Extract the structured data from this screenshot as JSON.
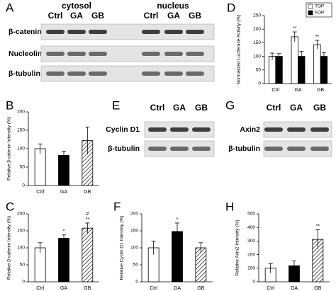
{
  "blots": [
    {
      "label": "A",
      "groups": [
        {
          "name": "cytosol",
          "lanes": [
            "Ctrl",
            "GA",
            "GB"
          ]
        },
        {
          "name": "nucleus",
          "lanes": [
            "Ctrl",
            "GA",
            "GB"
          ]
        }
      ],
      "rows": [
        "β-catenin",
        "Nucleolin",
        "β-tubulin"
      ]
    },
    {
      "label": "E",
      "groups": [
        {
          "lanes": [
            "Ctrl",
            "GA",
            "GB"
          ]
        }
      ],
      "rows": [
        "Cyclin D1",
        "β-tubulin"
      ]
    },
    {
      "label": "G",
      "groups": [
        {
          "lanes": [
            "Ctrl",
            "GA",
            "GB"
          ]
        }
      ],
      "rows": [
        "Axin2",
        "β-tubulin"
      ]
    }
  ],
  "chart_data": [
    {
      "type": "grouped-bar",
      "panel": "D",
      "y_label": "Normalized Luciferase Activity (%)",
      "categories": [
        "Ctrl",
        "GA",
        "GB"
      ],
      "series": [
        {
          "name": "TOP",
          "color": "#ffffff",
          "values": [
            100,
            172,
            143
          ],
          "errors": [
            12,
            18,
            16
          ]
        },
        {
          "name": "FOP",
          "color": "#000000",
          "values": [
            100,
            100,
            100
          ],
          "errors": [
            10,
            18,
            14
          ]
        }
      ],
      "annotations": [
        [],
        [
          "**"
        ],
        [
          "**"
        ]
      ],
      "ylim": [
        0,
        250
      ],
      "yticks": [
        0,
        50,
        100,
        150,
        200,
        250
      ],
      "legend": "upper right"
    },
    {
      "type": "bar",
      "panel": "B",
      "y_label": "Relative β-catenin Intensity (%)",
      "categories": [
        "Ctrl",
        "GA",
        "GB"
      ],
      "values": [
        100,
        82,
        122
      ],
      "errors": [
        13,
        11,
        37
      ],
      "fills": [
        "#ffffff",
        "#000000",
        "hatched"
      ],
      "annotations": [
        [],
        [],
        []
      ],
      "ylim": [
        0,
        200
      ],
      "yticks": [
        0,
        50,
        100,
        150,
        200
      ]
    },
    {
      "type": "bar",
      "panel": "C",
      "y_label": "Relative β-catenin Intensity (%)",
      "categories": [
        "Ctrl",
        "GA",
        "GB"
      ],
      "values": [
        100,
        128,
        158
      ],
      "errors": [
        15,
        10,
        15
      ],
      "fills": [
        "#ffffff",
        "#000000",
        "hatched"
      ],
      "annotations": [
        [],
        [
          "*"
        ],
        [
          "#",
          "**"
        ]
      ],
      "ylim": [
        0,
        200
      ],
      "yticks": [
        0,
        50,
        100,
        150,
        200
      ]
    },
    {
      "type": "bar",
      "panel": "F",
      "y_label": "Relative Cyclin D1 Intensity (%)",
      "categories": [
        "Ctrl",
        "GA",
        "GB"
      ],
      "values": [
        100,
        148,
        100
      ],
      "errors": [
        20,
        25,
        15
      ],
      "fills": [
        "#ffffff",
        "#000000",
        "hatched"
      ],
      "annotations": [
        [],
        [
          "*"
        ],
        []
      ],
      "ylim": [
        0,
        200
      ],
      "yticks": [
        0,
        50,
        100,
        150,
        200
      ]
    },
    {
      "type": "bar",
      "panel": "H",
      "y_label": "Relative Axin2 Intensity (%)",
      "categories": [
        "Ctrl",
        "GA",
        "GB"
      ],
      "values": [
        100,
        118,
        312
      ],
      "errors": [
        35,
        35,
        70
      ],
      "fills": [
        "#ffffff",
        "#000000",
        "hatched"
      ],
      "annotations": [
        [],
        [],
        [
          "**"
        ]
      ],
      "ylim": [
        0,
        500
      ],
      "yticks": [
        0,
        100,
        200,
        300,
        400,
        500
      ]
    }
  ]
}
